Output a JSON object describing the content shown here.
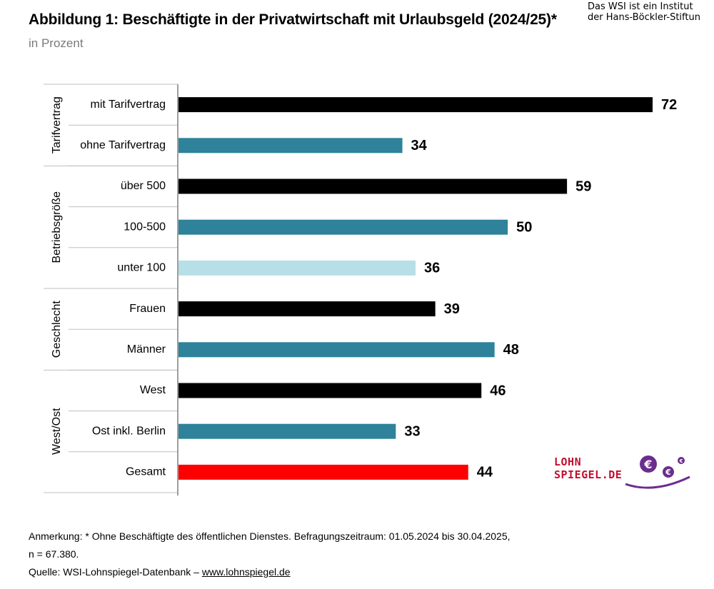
{
  "header": {
    "title": "Abbildung 1: Beschäftigte in der Privatwirtschaft mit Urlaubsgeld (2024/25)*",
    "subtitle": "in Prozent",
    "institute_line1": "Das WSI ist ein Institut",
    "institute_line2": "der Hans-Böckler-Stiftun"
  },
  "chart_data": {
    "type": "bar",
    "orientation": "horizontal",
    "title": "Abbildung 1: Beschäftigte in der Privatwirtschaft mit Urlaubsgeld (2024/25)*",
    "subtitle": "in Prozent",
    "xlim": [
      0,
      80
    ],
    "grid": false,
    "groups": [
      {
        "label": "Tarifvertrag",
        "categories": [
          "mit Tarifvertrag",
          "ohne Tarifvertrag"
        ]
      },
      {
        "label": "Betriebsgröße",
        "categories": [
          "über 500",
          "100-500",
          "unter 100"
        ]
      },
      {
        "label": "Geschlecht",
        "categories": [
          "Frauen",
          "Männer"
        ]
      },
      {
        "label": "West/Ost",
        "categories": [
          "West",
          "Ost inkl. Berlin",
          "Gesamt"
        ]
      }
    ],
    "categories": [
      "mit Tarifvertrag",
      "ohne Tarifvertrag",
      "über 500",
      "100-500",
      "unter 100",
      "Frauen",
      "Männer",
      "West",
      "Ost inkl. Berlin",
      "Gesamt"
    ],
    "values": [
      72,
      34,
      59,
      50,
      36,
      39,
      48,
      46,
      33,
      44
    ],
    "colors": [
      "#000000",
      "#2e8299",
      "#000000",
      "#2e8299",
      "#b7dfe7",
      "#000000",
      "#2e8299",
      "#000000",
      "#2e8299",
      "#ff0000"
    ]
  },
  "footer": {
    "note_line1": "Anmerkung: * Ohne Beschäftigte des öffentlichen Dienstes. Befragungszeitraum: 01.05.2024 bis 30.04.2025,",
    "note_line2": "n = 67.380.",
    "source_prefix": "Quelle:  WSI-Lohnspiegel-Datenbank – ",
    "source_link": "www.lohnspiegel.de"
  },
  "logo": {
    "line1": "LOHN",
    "line2": "SPIEGEL.DE",
    "color": "#c40f2e",
    "accent": "#6b2d8e"
  }
}
